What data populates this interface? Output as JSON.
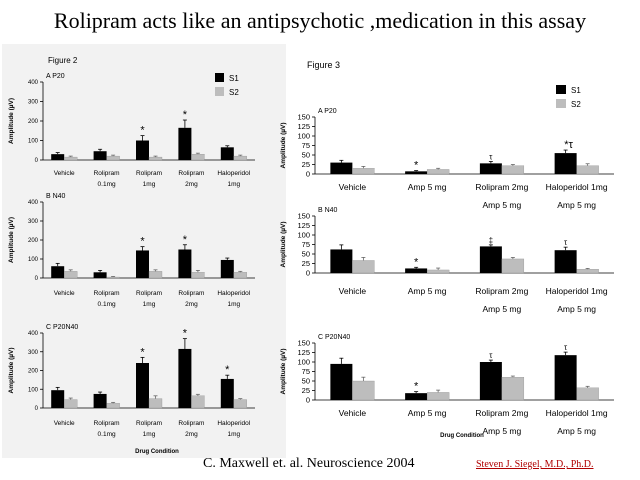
{
  "slide": {
    "title": "Rolipram acts like an antipsychotic ,medication in this assay",
    "citation": "C. Maxwell et. al. Neuroscience  2004",
    "author": "Steven J. Siegel, M.D., Ph.D."
  },
  "colors": {
    "s1": "#000000",
    "s2": "#bdbdbd",
    "left_panel_bg": "#f2f2f2"
  },
  "figure2": {
    "title": "Figure 2",
    "y_label": "Amplitude (µV)",
    "x_label": "Drug Condition",
    "legend": [
      "S1",
      "S2"
    ]
  },
  "figure3": {
    "title": "Figure 3",
    "y_label": "Amplitude (µV)",
    "x_label": "Drug Condition",
    "legend": [
      "S1",
      "S2"
    ]
  },
  "chart_data": [
    {
      "type": "bar",
      "figure": "Figure 2",
      "panel_label": "A P20",
      "categories": [
        "Vehicle",
        "Rolipram\n0.1mg",
        "Rolipram\n1mg",
        "Rolipram\n2mg",
        "Haloperidol\n1mg"
      ],
      "series": [
        {
          "name": "S1",
          "values": [
            30,
            45,
            100,
            165,
            65
          ]
        },
        {
          "name": "S2",
          "values": [
            15,
            20,
            15,
            30,
            20
          ]
        }
      ],
      "errors_s1": [
        8,
        10,
        25,
        40,
        8
      ],
      "errors_s2": [
        5,
        5,
        5,
        5,
        5
      ],
      "significance": [
        "",
        "",
        "*",
        "*",
        ""
      ],
      "ylim": [
        0,
        400
      ],
      "yticks": [
        0,
        100,
        200,
        300,
        400
      ],
      "ylabel": "Amplitude (µV)",
      "xlabel": ""
    },
    {
      "type": "bar",
      "figure": "Figure 2",
      "panel_label": "B N40",
      "categories": [
        "Vehicle",
        "Rolipram\n0.1mg",
        "Rolipram\n1mg",
        "Rolipram\n2mg",
        "Haloperidol\n1mg"
      ],
      "series": [
        {
          "name": "S1",
          "values": [
            62,
            30,
            145,
            150,
            95
          ]
        },
        {
          "name": "S2",
          "values": [
            35,
            5,
            35,
            30,
            30
          ]
        }
      ],
      "errors_s1": [
        15,
        10,
        20,
        25,
        10
      ],
      "errors_s2": [
        8,
        3,
        8,
        10,
        5
      ],
      "significance": [
        "",
        "",
        "*",
        "*",
        ""
      ],
      "ylim": [
        0,
        400
      ],
      "yticks": [
        0,
        100,
        200,
        300,
        400
      ],
      "ylabel": "Amplitude (µV)",
      "xlabel": ""
    },
    {
      "type": "bar",
      "figure": "Figure 2",
      "panel_label": "C P20N40",
      "categories": [
        "Vehicle",
        "Rolipram\n0.1mg",
        "Rolipram\n1mg",
        "Rolipram\n2mg",
        "Haloperidol\n1mg"
      ],
      "series": [
        {
          "name": "S1",
          "values": [
            95,
            75,
            240,
            315,
            155
          ]
        },
        {
          "name": "S2",
          "values": [
            45,
            25,
            50,
            65,
            45
          ]
        }
      ],
      "errors_s1": [
        15,
        10,
        30,
        55,
        20
      ],
      "errors_s2": [
        8,
        5,
        15,
        8,
        5
      ],
      "significance": [
        "",
        "",
        "*",
        "*",
        "*"
      ],
      "ylim": [
        0,
        400
      ],
      "yticks": [
        0,
        100,
        200,
        300,
        400
      ],
      "ylabel": "Amplitude (µV)",
      "xlabel": "Drug Condition"
    },
    {
      "type": "bar",
      "figure": "Figure 3",
      "panel_label": "A P20",
      "categories": [
        "Vehicle",
        "Amp 5 mg",
        "Rolipram 2mg\nAmp 5 mg",
        "Haloperidol 1mg\nAmp 5 mg"
      ],
      "series": [
        {
          "name": "S1",
          "values": [
            30,
            7,
            28,
            55
          ]
        },
        {
          "name": "S2",
          "values": [
            15,
            12,
            22,
            22
          ]
        }
      ],
      "errors_s1": [
        6,
        2,
        5,
        8
      ],
      "errors_s2": [
        5,
        3,
        3,
        5
      ],
      "significance": [
        "",
        "*",
        "τ",
        "*τ"
      ],
      "ylim": [
        0,
        150
      ],
      "yticks": [
        0,
        25,
        50,
        75,
        100,
        125,
        150
      ],
      "ylabel": "Amplitude (µV)",
      "xlabel": ""
    },
    {
      "type": "bar",
      "figure": "Figure 3",
      "panel_label": "B N40",
      "categories": [
        "Vehicle",
        "Amp 5 mg",
        "Rolipram 2mg\nAmp 5 mg",
        "Haloperidol 1mg\nAmp 5 mg"
      ],
      "series": [
        {
          "name": "S1",
          "values": [
            62,
            12,
            70,
            60
          ]
        },
        {
          "name": "S2",
          "values": [
            33,
            8,
            37,
            10
          ]
        }
      ],
      "errors_s1": [
        12,
        3,
        4,
        8
      ],
      "errors_s2": [
        8,
        5,
        4,
        2
      ],
      "significance": [
        "",
        "*",
        "‡",
        "τ"
      ],
      "ylim": [
        0,
        150
      ],
      "yticks": [
        0,
        25,
        50,
        75,
        100,
        125,
        150
      ],
      "ylabel": "Amplitude (µV)",
      "xlabel": ""
    },
    {
      "type": "bar",
      "figure": "Figure 3",
      "panel_label": "C P20N40",
      "categories": [
        "Vehicle",
        "Amp 5 mg",
        "Rolipram 2mg\nAmp 5 mg",
        "Haloperidol 1mg\nAmp 5 mg"
      ],
      "series": [
        {
          "name": "S1",
          "values": [
            95,
            18,
            100,
            118
          ]
        },
        {
          "name": "S2",
          "values": [
            50,
            20,
            60,
            32
          ]
        }
      ],
      "errors_s1": [
        15,
        4,
        5,
        8
      ],
      "errors_s2": [
        10,
        6,
        3,
        4
      ],
      "significance": [
        "",
        "*",
        "τ",
        "τ"
      ],
      "ylim": [
        0,
        150
      ],
      "yticks": [
        0,
        25,
        50,
        75,
        100,
        125,
        150
      ],
      "ylabel": "Amplitude (µV)",
      "xlabel": "Drug Condition"
    }
  ]
}
